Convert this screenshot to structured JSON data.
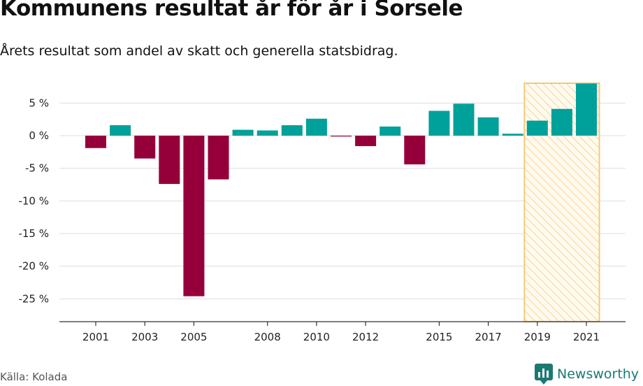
{
  "header": {
    "title": "Kommunens resultat år för år i Sorsele",
    "subtitle": "Årets resultat som andel av skatt och generella statsbidrag."
  },
  "footer": {
    "source": "Källa: Kolada",
    "brand": "Newsworthy"
  },
  "colors": {
    "positive": "#00a19a",
    "negative": "#96003a",
    "highlight_stroke": "#f5c97a",
    "highlight_hatch": "#f6d58f",
    "grid": "#dddddd",
    "brand": "#1a7a73"
  },
  "chart_data": {
    "type": "bar",
    "title": "Kommunens resultat år för år i Sorsele",
    "subtitle": "Årets resultat som andel av skatt och generella statsbidrag.",
    "categories": [
      "2001",
      "2002",
      "2003",
      "2004",
      "2005",
      "2006",
      "2007",
      "2008",
      "2009",
      "2010",
      "2011",
      "2012",
      "2013",
      "2014",
      "2015",
      "2016",
      "2017",
      "2018",
      "2019",
      "2020",
      "2021"
    ],
    "values": [
      -1.9,
      1.6,
      -3.5,
      -7.4,
      -24.6,
      -6.7,
      0.9,
      0.8,
      1.6,
      2.6,
      -0.1,
      -1.6,
      1.4,
      -4.4,
      3.8,
      4.9,
      2.8,
      0.3,
      2.3,
      4.1,
      8.0
    ],
    "x_tick_labels": [
      "2001",
      "2003",
      "2005",
      "2008",
      "2010",
      "2012",
      "2015",
      "2017",
      "2019",
      "2021"
    ],
    "y_ticks": [
      5,
      0,
      -5,
      -10,
      -15,
      -20,
      -25
    ],
    "y_tick_labels": [
      "5 %",
      "0 %",
      "-5 %",
      "-10 %",
      "-15 %",
      "-20 %",
      "-25 %"
    ],
    "ylim": [
      -28.5,
      9
    ],
    "grid": true,
    "highlight_range": [
      "2019",
      "2021"
    ],
    "xlabel": "",
    "ylabel": ""
  }
}
